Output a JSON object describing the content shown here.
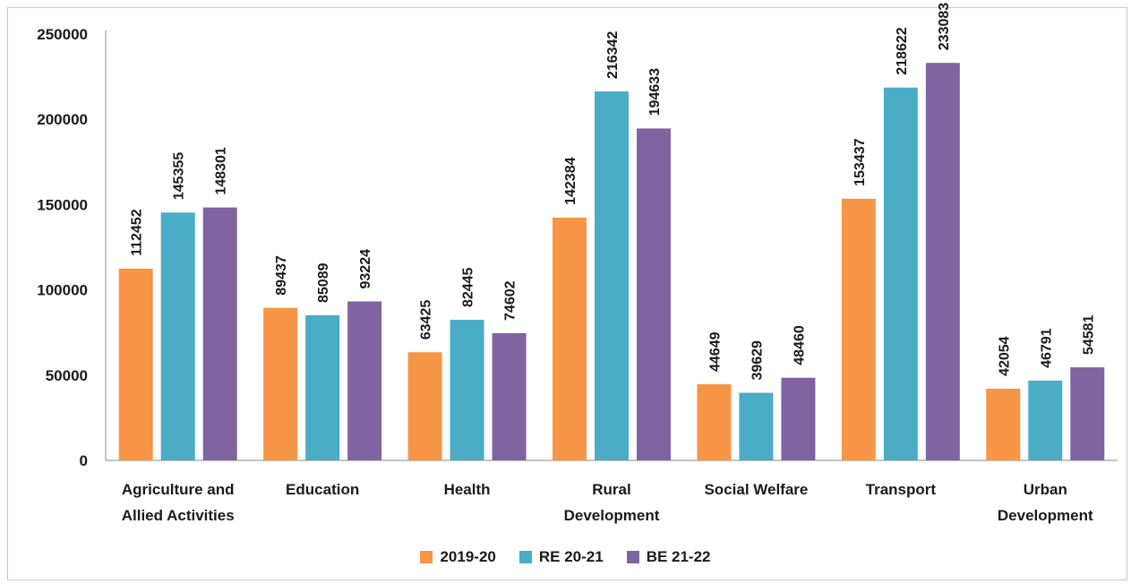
{
  "chart_data": {
    "type": "bar",
    "categories": [
      [
        "Agriculture and",
        "Allied Activities"
      ],
      [
        "Education"
      ],
      [
        "Health"
      ],
      [
        "Rural",
        "Development"
      ],
      [
        "Social Welfare"
      ],
      [
        "Transport"
      ],
      [
        "Urban",
        "Development"
      ]
    ],
    "series": [
      {
        "name": "2019-20",
        "color": "#F79646",
        "values": [
          112452,
          89437,
          63425,
          142384,
          44649,
          153437,
          42054
        ]
      },
      {
        "name": "RE 20-21",
        "color": "#4BACC6",
        "values": [
          145355,
          85089,
          82445,
          216342,
          39629,
          218622,
          46791
        ]
      },
      {
        "name": "BE 21-22",
        "color": "#8064A2",
        "values": [
          148301,
          93224,
          74602,
          194633,
          48460,
          233083,
          54581
        ]
      }
    ],
    "ylim": [
      0,
      250000
    ],
    "yticks": [
      "0",
      "50000",
      "100000",
      "150000",
      "200000",
      "250000"
    ],
    "grid": false,
    "legend_position": "bottom"
  }
}
